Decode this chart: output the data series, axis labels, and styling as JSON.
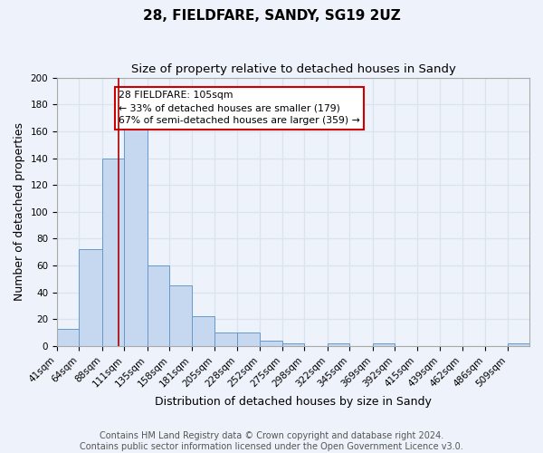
{
  "title": "28, FIELDFARE, SANDY, SG19 2UZ",
  "subtitle": "Size of property relative to detached houses in Sandy",
  "xlabel": "Distribution of detached houses by size in Sandy",
  "ylabel": "Number of detached properties",
  "bar_values": [
    13,
    72,
    140,
    166,
    60,
    45,
    22,
    10,
    10,
    4,
    2,
    0,
    2,
    0,
    2,
    0,
    0,
    0,
    0,
    0,
    2
  ],
  "bar_labels": [
    "41sqm",
    "64sqm",
    "88sqm",
    "111sqm",
    "135sqm",
    "158sqm",
    "181sqm",
    "205sqm",
    "228sqm",
    "252sqm",
    "275sqm",
    "298sqm",
    "322sqm",
    "345sqm",
    "369sqm",
    "392sqm",
    "415sqm",
    "439sqm",
    "462sqm",
    "486sqm",
    "509sqm"
  ],
  "bar_color": "#c5d8f0",
  "bar_edge_color": "#6699cc",
  "ylim": [
    0,
    200
  ],
  "yticks": [
    0,
    20,
    40,
    60,
    80,
    100,
    120,
    140,
    160,
    180,
    200
  ],
  "vline_x": 105,
  "vline_color": "#aa0000",
  "annotation_text": "28 FIELDFARE: 105sqm\n← 33% of detached houses are smaller (179)\n67% of semi-detached houses are larger (359) →",
  "annotation_box_color": "#ffffff",
  "annotation_box_edge": "#cc0000",
  "footer_line1": "Contains HM Land Registry data © Crown copyright and database right 2024.",
  "footer_line2": "Contains public sector information licensed under the Open Government Licence v3.0.",
  "background_color": "#eef2fa",
  "plot_bg_color": "#eef2fa",
  "grid_color": "#d8e4f0",
  "title_fontsize": 11,
  "subtitle_fontsize": 9.5,
  "axis_label_fontsize": 9,
  "tick_fontsize": 7.5,
  "footer_fontsize": 7,
  "bin_edges": [
    41,
    64,
    88,
    111,
    135,
    158,
    181,
    205,
    228,
    252,
    275,
    298,
    322,
    345,
    369,
    392,
    415,
    439,
    462,
    486,
    509,
    532
  ]
}
